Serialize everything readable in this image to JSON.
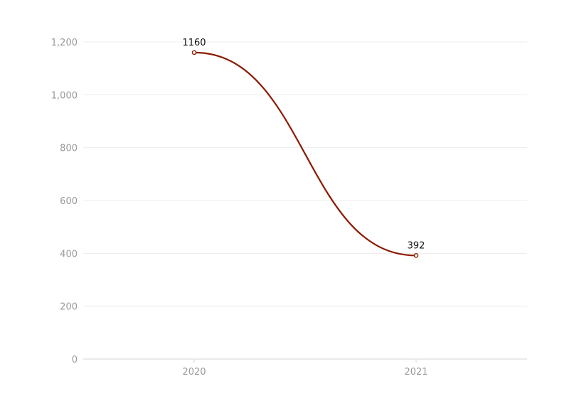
{
  "chart_data": {
    "type": "line",
    "categories": [
      "2020",
      "2021"
    ],
    "series": [
      {
        "values": [
          1160,
          392
        ],
        "color": "#8b1a00"
      }
    ],
    "ylim": [
      0,
      1200
    ],
    "y_ticks": [
      0,
      200,
      400,
      600,
      800,
      1000,
      1200
    ],
    "y_tick_labels": [
      "0",
      "200",
      "400",
      "600",
      "800",
      "1,000",
      "1,200"
    ],
    "data_labels": [
      "1160",
      "392"
    ],
    "curve": "smooth",
    "grid": true,
    "legend": "none",
    "colors": {
      "grid": "#ececec",
      "axis": "#d4d4d4",
      "tick_text": "#999999",
      "label_text": "#111111"
    }
  }
}
